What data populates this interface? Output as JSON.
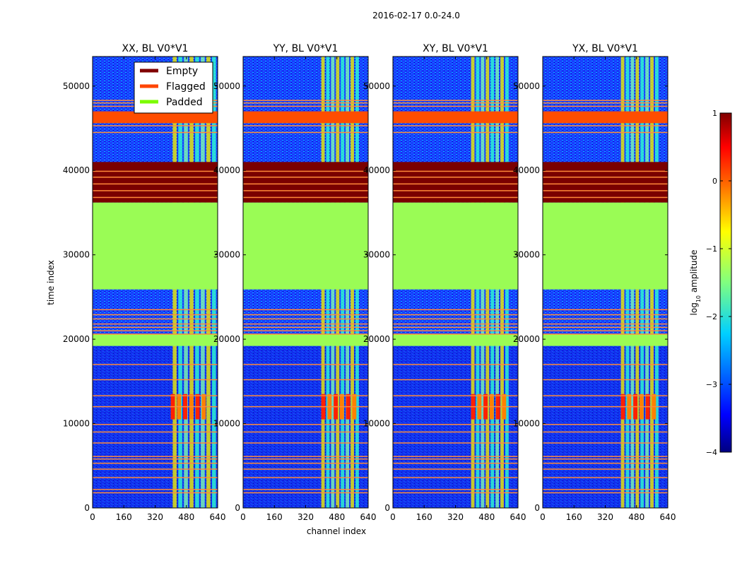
{
  "chart_data": {
    "type": "heatmap",
    "suptitle": "2016-02-17 0.0-24.0",
    "xlabel": "channel index",
    "ylabel": "time index",
    "xlim": [
      0,
      640
    ],
    "ylim": [
      0,
      53500
    ],
    "x_ticks": [
      0,
      160,
      320,
      480,
      640
    ],
    "y_ticks": [
      0,
      10000,
      20000,
      30000,
      40000,
      50000
    ],
    "panels": [
      {
        "title": "XX, BL V0*V1",
        "strong_channels": [
          410,
          640
        ],
        "burst_channels": [
          400,
          590
        ]
      },
      {
        "title": "YY, BL V0*V1",
        "strong_channels": [
          400,
          600
        ],
        "burst_channels": [
          400,
          590
        ]
      },
      {
        "title": "XY, BL V0*V1",
        "strong_channels": [
          400,
          600
        ],
        "burst_channels": [
          400,
          590
        ]
      },
      {
        "title": "YX, BL V0*V1",
        "strong_channels": [
          400,
          600
        ],
        "burst_channels": [
          400,
          590
        ]
      }
    ],
    "legend": {
      "location": "upper-left of first panel",
      "entries": [
        {
          "label": "Empty",
          "color": "#800000"
        },
        {
          "label": "Flagged",
          "color": "#ff4500"
        },
        {
          "label": "Padded",
          "color": "#7cfc00"
        }
      ]
    },
    "row_regions": [
      {
        "kind": "padded",
        "start": 25900,
        "end": 36200
      },
      {
        "kind": "empty",
        "start": 36200,
        "end": 41000
      },
      {
        "kind": "padded",
        "start": 19200,
        "end": 20600
      },
      {
        "kind": "flagged",
        "start": 45600,
        "end": 47000
      }
    ],
    "flag_lines": [
      44500,
      45300,
      47600,
      48000,
      48300,
      36800,
      37600,
      38400,
      39200,
      39900,
      23500,
      22900,
      22400,
      21800,
      21400,
      21000,
      20600,
      17000,
      15200,
      13300,
      12000,
      9900,
      9000,
      7700,
      6100,
      5800,
      5300,
      4600,
      3600,
      2200,
      1800
    ],
    "colorbar": {
      "label": "log",
      "label_subscript": "10",
      "label_suffix": " amplitude",
      "range": [
        -4,
        1
      ],
      "ticks": [
        1,
        0,
        -1,
        -2,
        -3,
        -4
      ],
      "tick_labels": [
        "1",
        "0",
        "−1",
        "−2",
        "−3",
        "−4"
      ],
      "colors": [
        "#000080",
        "#0000ff",
        "#0080ff",
        "#00ffff",
        "#80ff80",
        "#ffff00",
        "#ff8000",
        "#ff0000",
        "#800000"
      ]
    }
  }
}
